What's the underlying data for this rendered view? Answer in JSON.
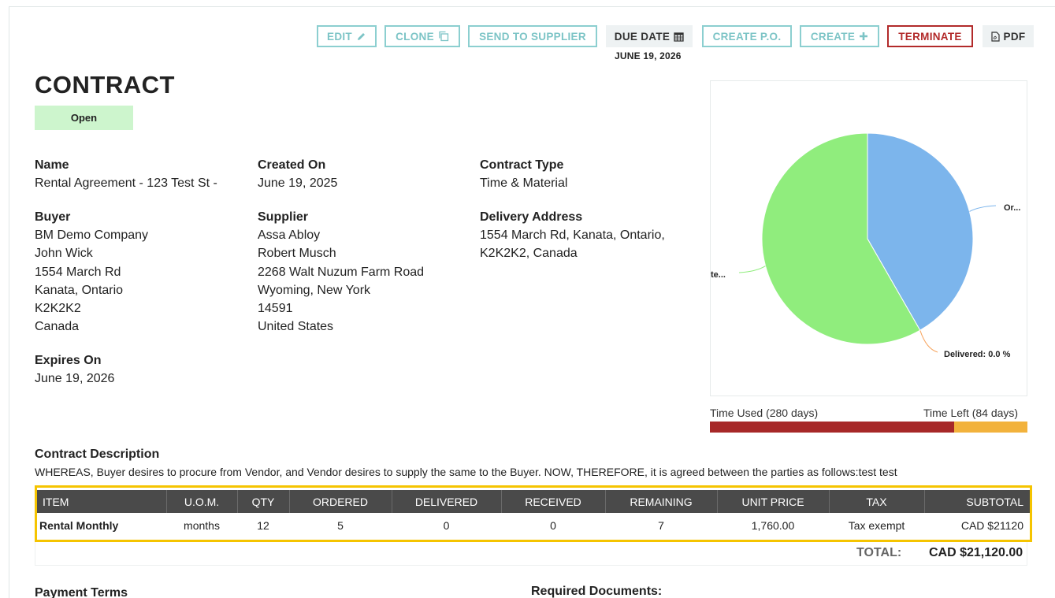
{
  "toolbar": {
    "edit_label": "EDIT",
    "clone_label": "CLONE",
    "send_label": "SEND TO SUPPLIER",
    "due_label": "DUE DATE",
    "due_value": "JUNE 19, 2026",
    "create_po_label": "CREATE P.O.",
    "create_label": "CREATE",
    "terminate_label": "TERMINATE",
    "pdf_label": "PDF"
  },
  "page": {
    "title": "CONTRACT",
    "status": "Open"
  },
  "details": {
    "name": {
      "label": "Name",
      "value": "Rental Agreement - 123 Test St -"
    },
    "created_on": {
      "label": "Created On",
      "value": "June 19, 2025"
    },
    "contract_type": {
      "label": "Contract Type",
      "value": "Time & Material"
    },
    "buyer": {
      "label": "Buyer",
      "lines": [
        "BM Demo Company",
        "John Wick",
        "1554 March Rd",
        "Kanata, Ontario",
        "K2K2K2",
        "Canada"
      ]
    },
    "supplier": {
      "label": "Supplier",
      "lines": [
        "Assa Abloy",
        "Robert Musch",
        "2268 Walt Nuzum Farm Road",
        "Wyoming, New York",
        "14591",
        "United States"
      ]
    },
    "delivery": {
      "label": "Delivery Address",
      "lines": [
        "1554 March Rd, Kanata, Ontario,",
        "K2K2K2, Canada"
      ]
    },
    "expires_on": {
      "label": "Expires On",
      "value": "June 19, 2026"
    }
  },
  "chart_data": {
    "type": "pie",
    "slices": [
      {
        "label": "Or...",
        "value": 41.7,
        "color": "#7cb5ec"
      },
      {
        "label": "Delivered: 0.0 %",
        "value": 0.0,
        "color": "#f7a35c"
      },
      {
        "label": "...te...",
        "value": 58.3,
        "color": "#90ed7d"
      }
    ]
  },
  "time": {
    "used_label": "Time Used (280 days)",
    "left_label": "Time Left (84 days)",
    "used_fraction": 0.769,
    "used_color": "#a72828",
    "left_color": "#f2b23c"
  },
  "description": {
    "label": "Contract Description",
    "text": "WHEREAS, Buyer desires to procure from Vendor, and Vendor desires to supply the same to the Buyer. NOW, THEREFORE, it is agreed between the parties as follows:test test"
  },
  "table": {
    "headers": [
      "ITEM",
      "U.O.M.",
      "QTY",
      "ORDERED",
      "DELIVERED",
      "RECEIVED",
      "REMAINING",
      "UNIT PRICE",
      "TAX",
      "SUBTOTAL"
    ],
    "rows": [
      [
        "Rental Monthly",
        "months",
        "12",
        "5",
        "0",
        "0",
        "7",
        "1,760.00",
        "Tax exempt",
        "CAD $21120"
      ]
    ]
  },
  "totals": {
    "label": "TOTAL:",
    "value": "CAD $21,120.00"
  },
  "bottom": {
    "payment_terms": "Payment Terms",
    "required_documents": "Required Documents:"
  }
}
